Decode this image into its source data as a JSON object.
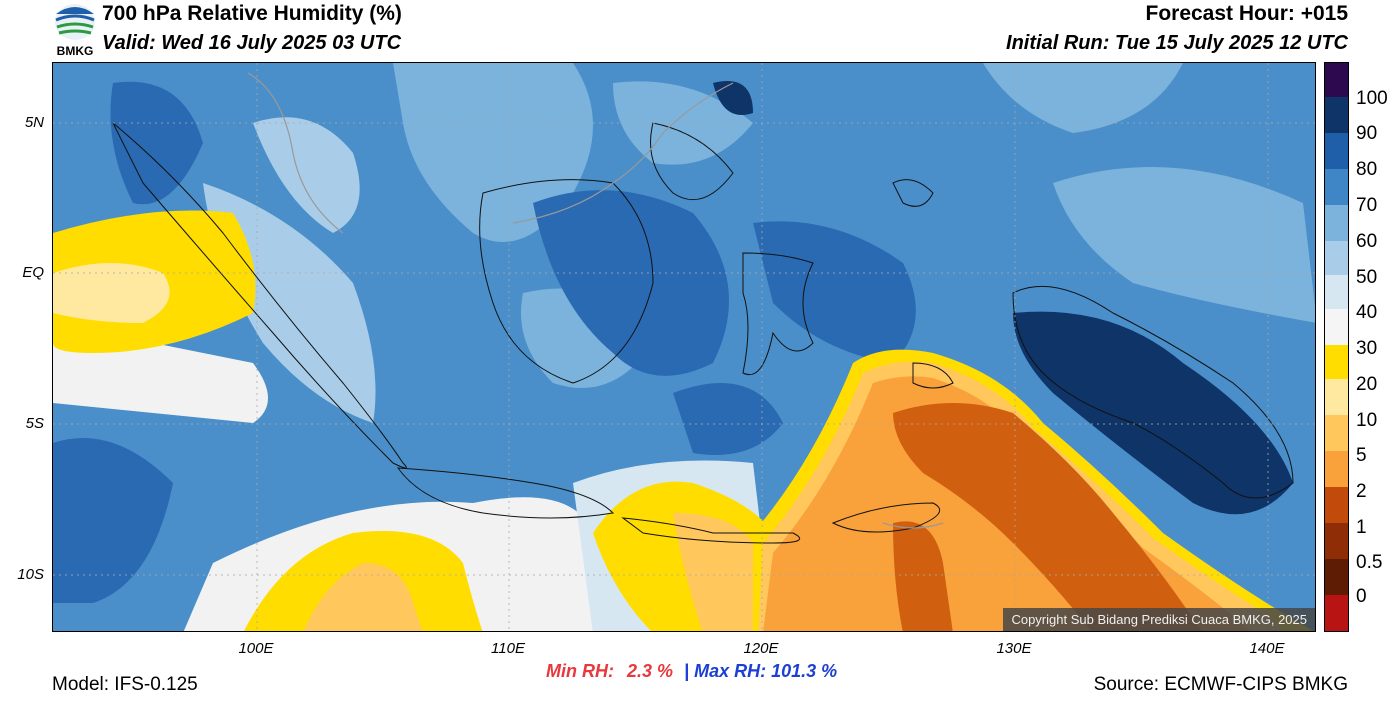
{
  "header": {
    "title": "700 hPa Relative Humidity (%)",
    "valid": "Valid: Wed 16 July 2025 03 UTC",
    "forecast_hour": "Forecast Hour: +015",
    "initial_run": "Initial Run: Tue 15 July 2025 12 UTC",
    "logo_text": "BMKG"
  },
  "map": {
    "lat_labels": [
      "5N",
      "EQ",
      "5S",
      "10S"
    ],
    "lon_labels": [
      "100E",
      "110E",
      "120E",
      "130E",
      "140E"
    ],
    "copyright": "Copyright Sub Bidang Prediksi Cuaca BMKG, 2025"
  },
  "colorbar": {
    "labels": [
      "100",
      "90",
      "80",
      "70",
      "60",
      "50",
      "40",
      "30",
      "20",
      "10",
      "5",
      "2",
      "1",
      "0.5",
      "0"
    ],
    "colors": [
      "#2d0a4f",
      "#0e3468",
      "#1f5ea8",
      "#3f86c6",
      "#7bb3dc",
      "#a9cde8",
      "#d6e7f2",
      "#f5f5f5",
      "#ffdd00",
      "#ffe8a0",
      "#ffc75c",
      "#f9a13a",
      "#e0711a",
      "#c24a0a",
      "#8f2d06",
      "#5e1c05",
      "#b81414",
      "#f04040"
    ]
  },
  "stats": {
    "min_label": "Min RH:",
    "min_value": "2.3 %",
    "separator": "|",
    "max_label": "Max RH:",
    "max_value": "101.3 %"
  },
  "footer": {
    "model": "Model: IFS-0.125",
    "source": "Source: ECMWF-CIPS BMKG"
  }
}
